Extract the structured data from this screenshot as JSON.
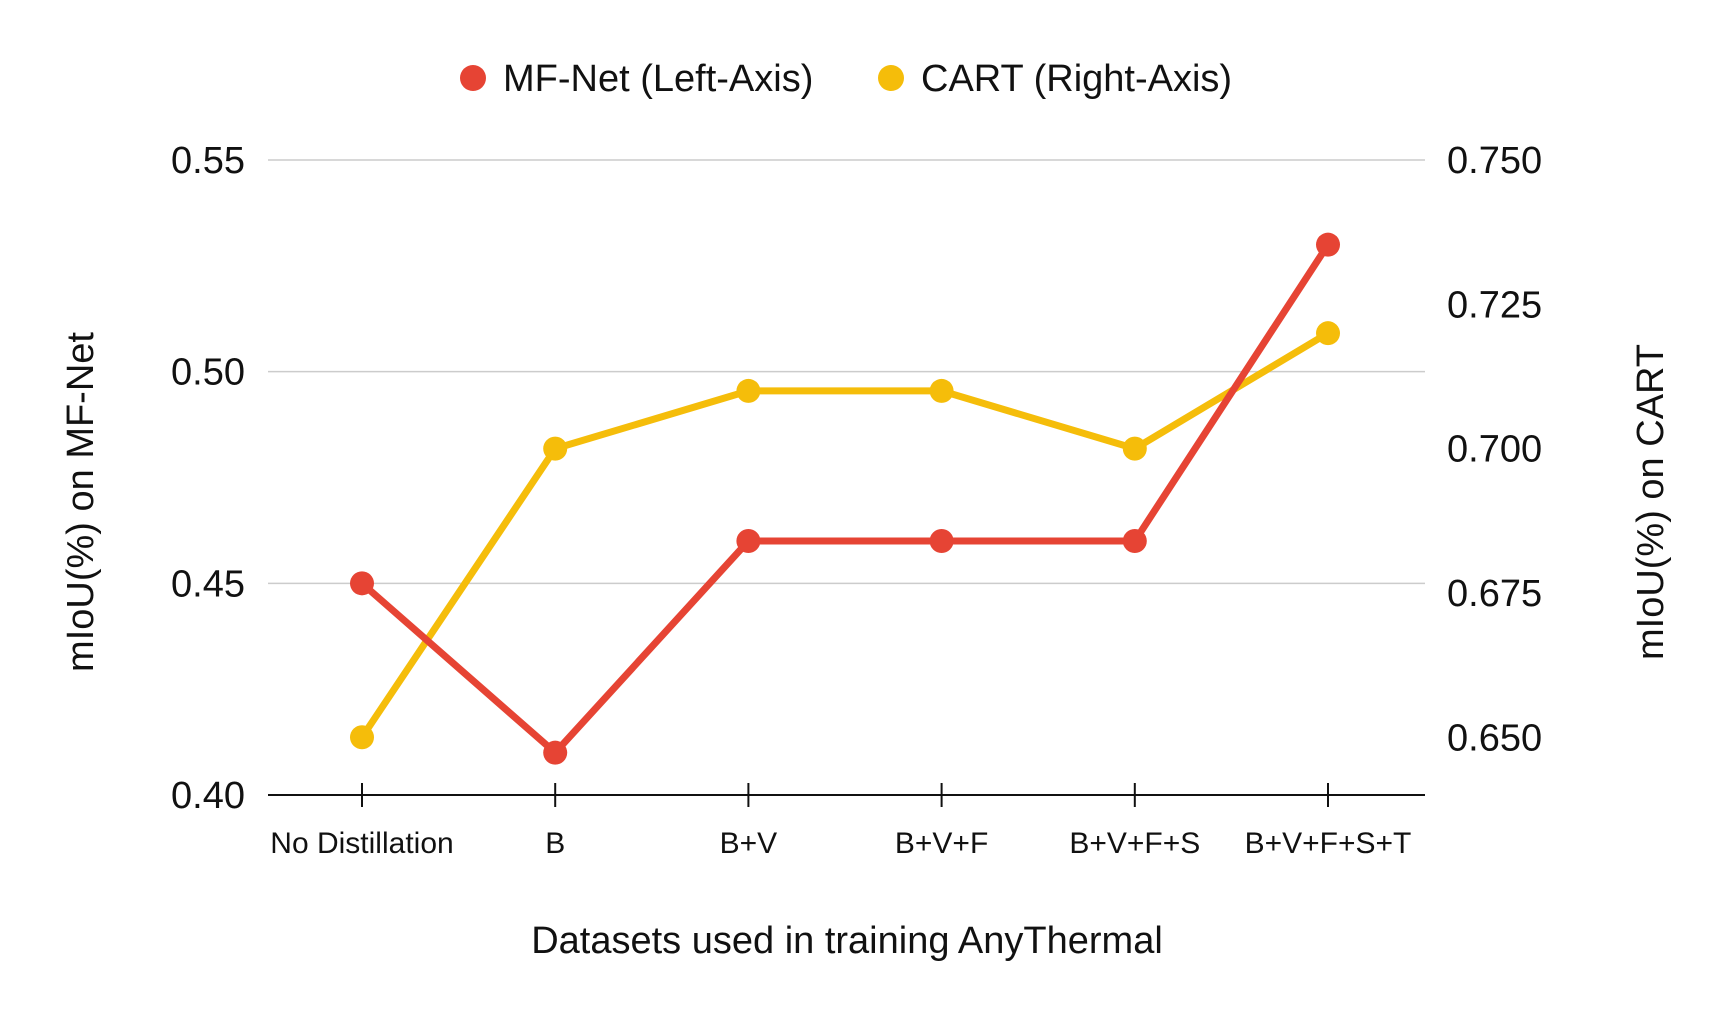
{
  "chart_data": {
    "type": "line",
    "categories": [
      "No Distillation",
      "B",
      "B+V",
      "B+V+F",
      "B+V+F+S",
      "B+V+F+S+T"
    ],
    "series": [
      {
        "name": "MF-Net (Left-Axis)",
        "axis": "left",
        "color": "#e64434",
        "values": [
          0.45,
          0.41,
          0.46,
          0.46,
          0.46,
          0.53
        ]
      },
      {
        "name": "CART (Right-Axis)",
        "axis": "right",
        "color": "#f5bd0a",
        "values": [
          0.65,
          0.7,
          0.71,
          0.71,
          0.7,
          0.72
        ]
      }
    ],
    "xlabel": "Datasets used in training AnyThermal",
    "ylabel_left": "mIoU(%) on MF-Net",
    "ylabel_right": "mIoU(%) on CART",
    "ylim_left": [
      0.4,
      0.55
    ],
    "ylim_right": [
      0.64,
      0.75
    ],
    "yticks_left": [
      "0.40",
      "0.45",
      "0.50",
      "0.55"
    ],
    "yticks_right": [
      "0.650",
      "0.675",
      "0.700",
      "0.725",
      "0.750"
    ],
    "grid": true,
    "legend_position": "top-center"
  }
}
